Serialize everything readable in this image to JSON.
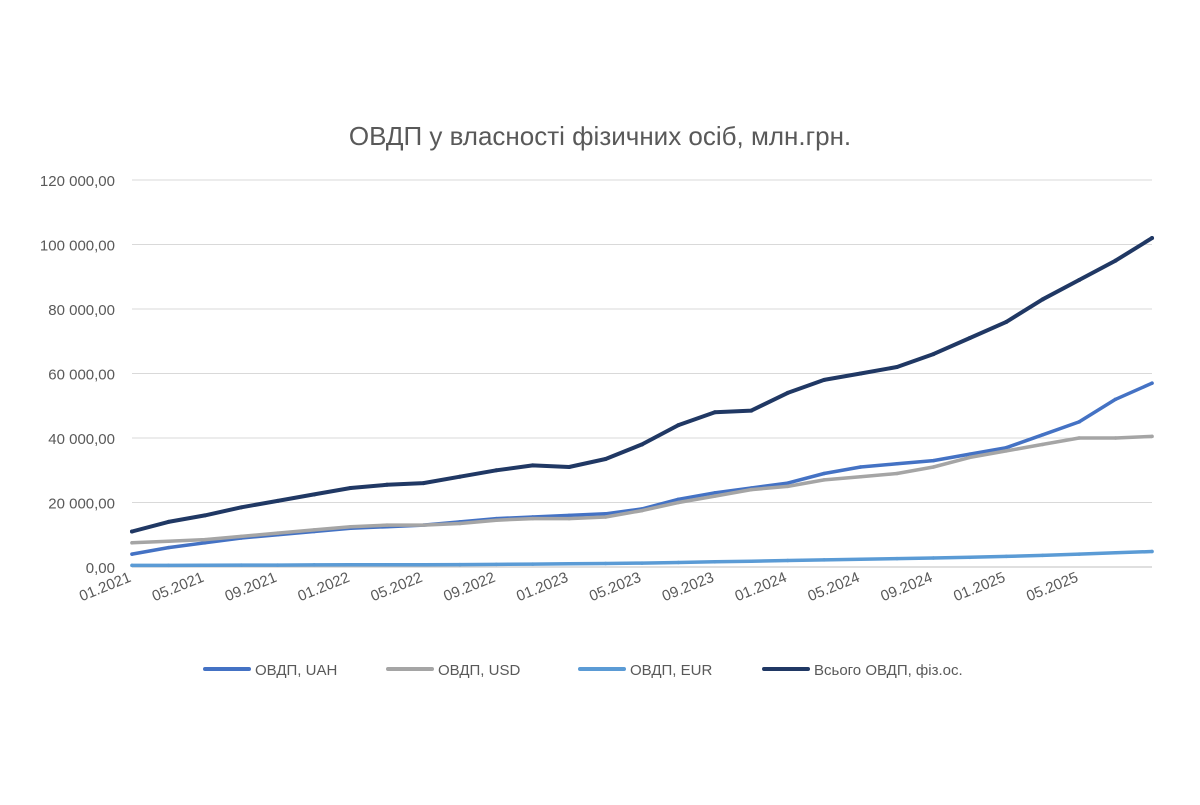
{
  "chart_data": {
    "type": "line",
    "title": "ОВДП у власності фізичних осіб, млн.грн.",
    "xlabel": "",
    "ylabel": "",
    "x_range": [
      "2021-01",
      "2025-09"
    ],
    "ylim": [
      0,
      120000
    ],
    "y_ticks": [
      {
        "value": 0,
        "label": "0,00"
      },
      {
        "value": 20000,
        "label": "20 000,00"
      },
      {
        "value": 40000,
        "label": "40 000,00"
      },
      {
        "value": 60000,
        "label": "60 000,00"
      },
      {
        "value": 80000,
        "label": "80 000,00"
      },
      {
        "value": 100000,
        "label": "100 000,00"
      },
      {
        "value": 120000,
        "label": "120 000,00"
      }
    ],
    "x_ticks": [
      {
        "value": "2021-01",
        "label": "01.2021"
      },
      {
        "value": "2021-05",
        "label": "05.2021"
      },
      {
        "value": "2021-09",
        "label": "09.2021"
      },
      {
        "value": "2022-01",
        "label": "01.2022"
      },
      {
        "value": "2022-05",
        "label": "05.2022"
      },
      {
        "value": "2022-09",
        "label": "09.2022"
      },
      {
        "value": "2023-01",
        "label": "01.2023"
      },
      {
        "value": "2023-05",
        "label": "05.2023"
      },
      {
        "value": "2023-09",
        "label": "09.2023"
      },
      {
        "value": "2024-01",
        "label": "01.2024"
      },
      {
        "value": "2024-05",
        "label": "05.2024"
      },
      {
        "value": "2024-09",
        "label": "09.2024"
      },
      {
        "value": "2025-01",
        "label": "01.2025"
      },
      {
        "value": "2025-05",
        "label": "05.2025"
      }
    ],
    "grid": "horizontal",
    "legend_position": "bottom",
    "x": [
      "2021-01",
      "2021-03",
      "2021-05",
      "2021-07",
      "2021-09",
      "2021-11",
      "2022-01",
      "2022-03",
      "2022-05",
      "2022-07",
      "2022-09",
      "2022-11",
      "2023-01",
      "2023-03",
      "2023-05",
      "2023-07",
      "2023-09",
      "2023-11",
      "2024-01",
      "2024-03",
      "2024-05",
      "2024-07",
      "2024-09",
      "2024-11",
      "2025-01",
      "2025-03",
      "2025-05",
      "2025-07",
      "2025-09"
    ],
    "series": [
      {
        "name": "ОВДП, UAH",
        "color": "#4472c4",
        "width": 3.5,
        "values": [
          4000,
          6000,
          7500,
          9000,
          10000,
          11000,
          12000,
          12500,
          13000,
          14000,
          15000,
          15500,
          16000,
          16500,
          18000,
          21000,
          23000,
          24500,
          26000,
          29000,
          31000,
          32000,
          33000,
          35000,
          37000,
          41000,
          45000,
          52000,
          57000
        ]
      },
      {
        "name": "ОВДП, USD",
        "color": "#a5a5a5",
        "width": 3.5,
        "values": [
          7500,
          8000,
          8500,
          9500,
          10500,
          11500,
          12500,
          13000,
          13000,
          13500,
          14500,
          15000,
          15000,
          15500,
          17500,
          20000,
          22000,
          24000,
          25000,
          27000,
          28000,
          29000,
          31000,
          34000,
          36000,
          38000,
          40000,
          40000,
          40500
        ]
      },
      {
        "name": "ОВДП, EUR",
        "color": "#5b9bd5",
        "width": 3.5,
        "values": [
          500,
          500,
          550,
          600,
          600,
          650,
          700,
          700,
          700,
          750,
          800,
          900,
          1000,
          1100,
          1200,
          1400,
          1600,
          1800,
          2000,
          2200,
          2400,
          2600,
          2800,
          3000,
          3300,
          3600,
          4000,
          4400,
          4800
        ]
      },
      {
        "name": "Всього ОВДП, фіз.ос.",
        "color": "#203864",
        "width": 4,
        "values": [
          11000,
          14000,
          16000,
          18500,
          20500,
          22500,
          24500,
          25500,
          26000,
          28000,
          30000,
          31500,
          31000,
          33500,
          38000,
          44000,
          48000,
          48500,
          54000,
          58000,
          60000,
          62000,
          66000,
          71000,
          76000,
          83000,
          89000,
          95000,
          102000
        ]
      }
    ]
  }
}
